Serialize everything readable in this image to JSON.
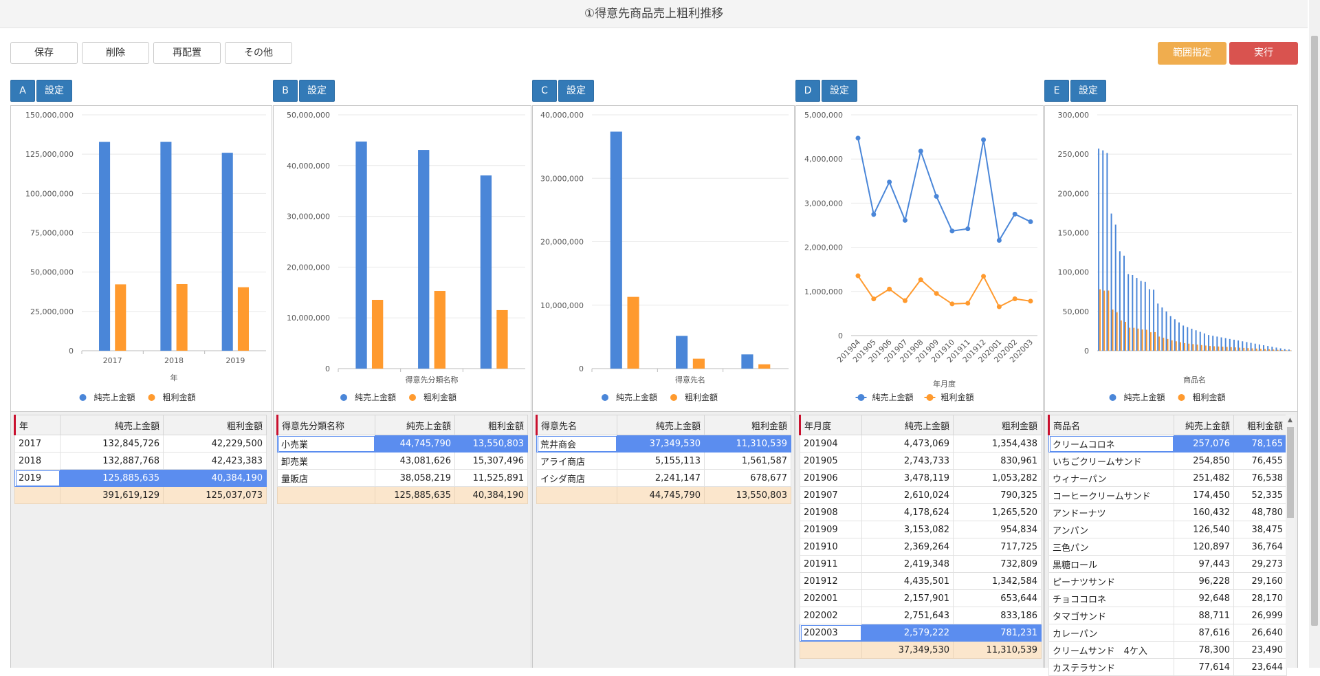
{
  "page": {
    "title": "①得意先商品売上粗利推移"
  },
  "toolbar": {
    "save": "保存",
    "delete": "削除",
    "rearrange": "再配置",
    "other": "その他",
    "range": "範囲指定",
    "run": "実行",
    "range_color": "#f0ad4e",
    "run_color": "#d9534f"
  },
  "colors": {
    "net_sales": "#4a86d8",
    "gross_profit": "#ff9a2e",
    "selected_row": "#5b8def",
    "total_row": "#fbe6cc"
  },
  "panels": [
    {
      "letter": "A",
      "settings": "設定",
      "grid": {
        "headers": [
          "年",
          "純売上金額",
          "粗利金額"
        ],
        "rows": [
          [
            "2017",
            "132,845,726",
            "42,229,500"
          ],
          [
            "2018",
            "132,887,768",
            "42,423,383"
          ],
          [
            "2019",
            "125,885,635",
            "40,384,190"
          ]
        ],
        "selected_row": 2,
        "total": [
          "",
          "391,619,129",
          "125,037,073"
        ]
      }
    },
    {
      "letter": "B",
      "settings": "設定",
      "grid": {
        "headers": [
          "得意先分類名称",
          "純売上金額",
          "粗利金額"
        ],
        "rows": [
          [
            "小売業",
            "44,745,790",
            "13,550,803"
          ],
          [
            "卸売業",
            "43,081,626",
            "15,307,496"
          ],
          [
            "量販店",
            "38,058,219",
            "11,525,891"
          ]
        ],
        "selected_row": 0,
        "total": [
          "",
          "125,885,635",
          "40,384,190"
        ]
      }
    },
    {
      "letter": "C",
      "settings": "設定",
      "grid": {
        "headers": [
          "得意先名",
          "純売上金額",
          "粗利金額"
        ],
        "rows": [
          [
            "荒井商会",
            "37,349,530",
            "11,310,539"
          ],
          [
            "アライ商店",
            "5,155,113",
            "1,561,587"
          ],
          [
            "イシダ商店",
            "2,241,147",
            "678,677"
          ]
        ],
        "selected_row": 0,
        "total": [
          "",
          "44,745,790",
          "13,550,803"
        ]
      }
    },
    {
      "letter": "D",
      "settings": "設定",
      "grid": {
        "headers": [
          "年月度",
          "純売上金額",
          "粗利金額"
        ],
        "rows": [
          [
            "201904",
            "4,473,069",
            "1,354,438"
          ],
          [
            "201905",
            "2,743,733",
            "830,961"
          ],
          [
            "201906",
            "3,478,119",
            "1,053,282"
          ],
          [
            "201907",
            "2,610,024",
            "790,325"
          ],
          [
            "201908",
            "4,178,624",
            "1,265,520"
          ],
          [
            "201909",
            "3,153,082",
            "954,834"
          ],
          [
            "201910",
            "2,369,264",
            "717,725"
          ],
          [
            "201911",
            "2,419,348",
            "732,809"
          ],
          [
            "201912",
            "4,435,501",
            "1,342,584"
          ],
          [
            "202001",
            "2,157,901",
            "653,644"
          ],
          [
            "202002",
            "2,751,643",
            "833,186"
          ],
          [
            "202003",
            "2,579,222",
            "781,231"
          ]
        ],
        "selected_row": 11,
        "total": [
          "",
          "37,349,530",
          "11,310,539"
        ]
      }
    },
    {
      "letter": "E",
      "settings": "設定",
      "grid": {
        "headers": [
          "商品名",
          "純売上金額",
          "粗利金額"
        ],
        "rows": [
          [
            "クリームコロネ",
            "257,076",
            "78,165"
          ],
          [
            "いちごクリームサンド",
            "254,850",
            "76,455"
          ],
          [
            "ウィナーパン",
            "251,482",
            "76,538"
          ],
          [
            "コーヒークリームサンド",
            "174,450",
            "52,335"
          ],
          [
            "アンドーナツ",
            "160,432",
            "48,780"
          ],
          [
            "アンパン",
            "126,540",
            "38,475"
          ],
          [
            "三色パン",
            "120,897",
            "36,764"
          ],
          [
            "黒糖ロール",
            "97,443",
            "29,273"
          ],
          [
            "ピーナツサンド",
            "96,228",
            "29,160"
          ],
          [
            "チョココロネ",
            "92,648",
            "28,170"
          ],
          [
            "タマゴサンド",
            "88,711",
            "26,999"
          ],
          [
            "カレーパン",
            "87,616",
            "26,640"
          ],
          [
            "クリームサンド　4ケ入",
            "78,300",
            "23,490"
          ],
          [
            "カステラサンド",
            "77,614",
            "23,644"
          ]
        ],
        "selected_row": 0,
        "total": null
      }
    }
  ],
  "chart_data": [
    {
      "type": "bar",
      "xlabel": "年",
      "categories": [
        "2017",
        "2018",
        "2019"
      ],
      "series": [
        {
          "name": "純売上金額",
          "values": [
            132845726,
            132887768,
            125885635
          ]
        },
        {
          "name": "粗利金額",
          "values": [
            42229500,
            42423383,
            40384190
          ]
        }
      ],
      "ylim": [
        0,
        150000000
      ],
      "yticks": [
        "0",
        "25,000,000",
        "50,000,000",
        "75,000,000",
        "100,000,000",
        "125,000,000",
        "150,000,000"
      ],
      "legend": "bottom"
    },
    {
      "type": "bar",
      "xlabel": "得意先分類名称",
      "categories": [
        "小売業",
        "卸売業",
        "量販店"
      ],
      "series": [
        {
          "name": "純売上金額",
          "values": [
            44745790,
            43081626,
            38058219
          ]
        },
        {
          "name": "粗利金額",
          "values": [
            13550803,
            15307496,
            11525891
          ]
        }
      ],
      "ylim": [
        0,
        50000000
      ],
      "yticks": [
        "0",
        "10,000,000",
        "20,000,000",
        "30,000,000",
        "40,000,000",
        "50,000,000"
      ],
      "legend": "bottom"
    },
    {
      "type": "bar",
      "xlabel": "得意先名",
      "categories": [
        "荒井商会",
        "アライ商店",
        "イシダ商店"
      ],
      "series": [
        {
          "name": "純売上金額",
          "values": [
            37349530,
            5155113,
            2241147
          ]
        },
        {
          "name": "粗利金額",
          "values": [
            11310539,
            1561587,
            678677
          ]
        }
      ],
      "ylim": [
        0,
        40000000
      ],
      "yticks": [
        "0",
        "10,000,000",
        "20,000,000",
        "30,000,000",
        "40,000,000"
      ],
      "legend": "bottom"
    },
    {
      "type": "line",
      "xlabel": "年月度",
      "x": [
        "201904",
        "201905",
        "201906",
        "201907",
        "201908",
        "201909",
        "201910",
        "201911",
        "201912",
        "202001",
        "202002",
        "202003"
      ],
      "series": [
        {
          "name": "純売上金額",
          "values": [
            4473069,
            2743733,
            3478119,
            2610024,
            4178624,
            3153082,
            2369264,
            2419348,
            4435501,
            2157901,
            2751643,
            2579222
          ]
        },
        {
          "name": "粗利金額",
          "values": [
            1354438,
            830961,
            1053282,
            790325,
            1265520,
            954834,
            717725,
            732809,
            1342584,
            653644,
            833186,
            781231
          ]
        }
      ],
      "ylim": [
        0,
        5000000
      ],
      "yticks": [
        "0",
        "1,000,000",
        "2,000,000",
        "3,000,000",
        "4,000,000",
        "5,000,000"
      ],
      "legend": "bottom"
    },
    {
      "type": "bar",
      "xlabel": "商品名",
      "categories_hidden": true,
      "series": [
        {
          "name": "純売上金額",
          "values": [
            257076,
            254850,
            251482,
            174450,
            160432,
            126540,
            120897,
            97443,
            96228,
            92648,
            88711,
            87616,
            78300,
            77614,
            60000,
            55000,
            50000,
            44000,
            40000,
            36000,
            32000,
            30000,
            28000,
            26000,
            24000,
            22000,
            20000,
            19000,
            18000,
            17000,
            16000,
            15000,
            14000,
            13000,
            12000,
            11000,
            10000,
            9000,
            8000,
            7000,
            6000,
            5000,
            4000,
            3000,
            2000,
            1500
          ]
        },
        {
          "name": "粗利金額",
          "values": [
            78165,
            76455,
            76538,
            52335,
            48780,
            38475,
            36764,
            29273,
            29160,
            28170,
            26999,
            26640,
            23490,
            23644,
            18000,
            16500,
            15000,
            13200,
            12000,
            10800,
            9600,
            9000,
            8400,
            7800,
            7200,
            6600,
            6000,
            5700,
            5400,
            5100,
            4800,
            4500,
            4200,
            3900,
            3600,
            3300,
            3000,
            2700,
            2400,
            2100,
            1800,
            1500,
            1200,
            900,
            600,
            450
          ]
        }
      ],
      "ylim": [
        0,
        300000
      ],
      "yticks": [
        "0",
        "50,000",
        "100,000",
        "150,000",
        "200,000",
        "250,000",
        "300,000"
      ],
      "legend": "bottom"
    }
  ]
}
